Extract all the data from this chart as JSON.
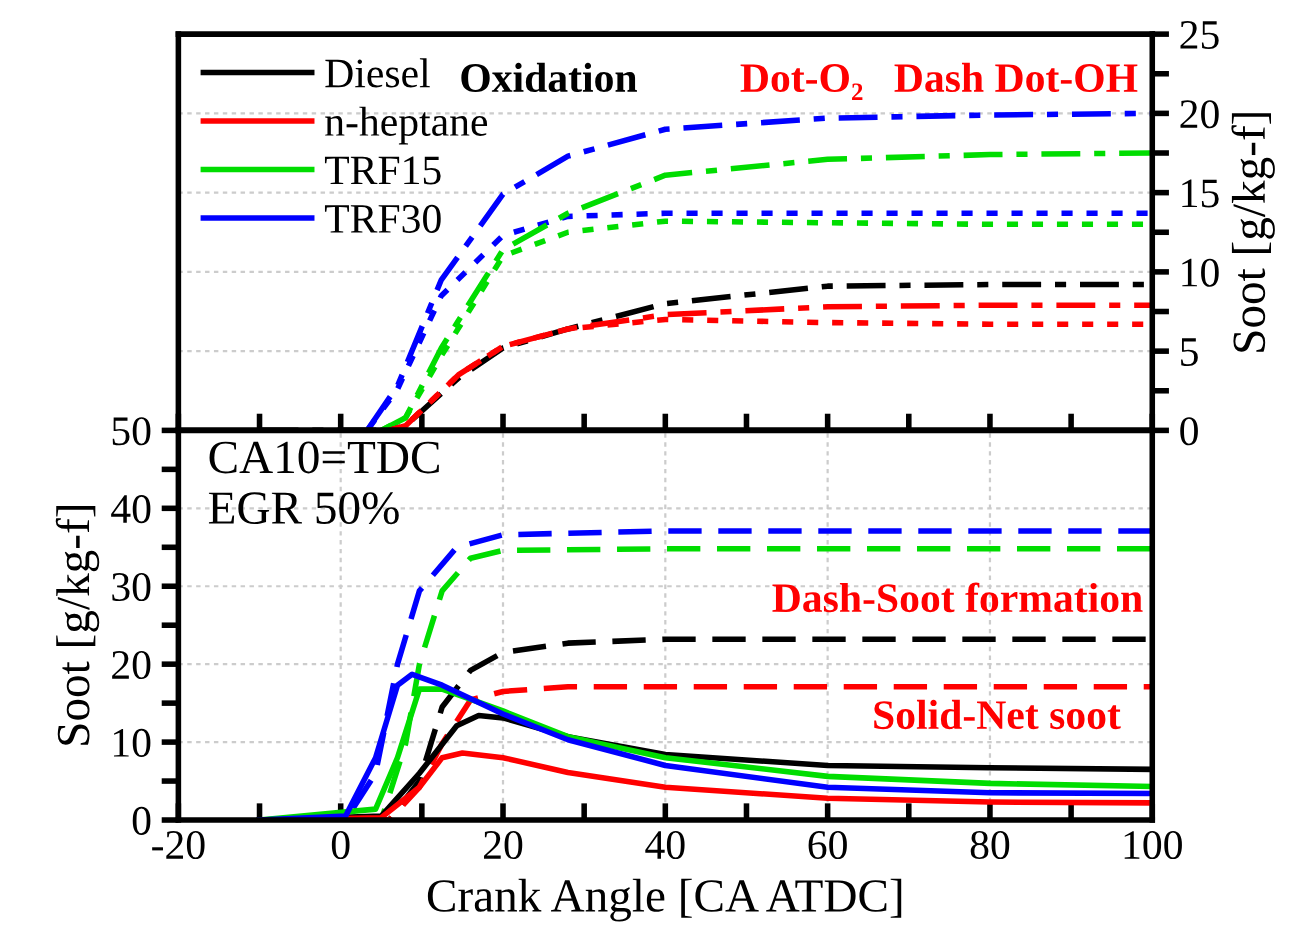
{
  "chart_data": [
    {
      "type": "line",
      "xlim": [
        -20,
        100
      ],
      "xticks": [
        {
          "value": -20,
          "label": null
        },
        {
          "value": -10,
          "label": null
        },
        {
          "value": 0,
          "label": null
        },
        {
          "value": 10,
          "label": null
        },
        {
          "value": 20,
          "label": null
        },
        {
          "value": 30,
          "label": null
        },
        {
          "value": 40,
          "label": null
        },
        {
          "value": 50,
          "label": null
        },
        {
          "value": 60,
          "label": null
        },
        {
          "value": 70,
          "label": null
        },
        {
          "value": 80,
          "label": null
        },
        {
          "value": 90,
          "label": null
        },
        {
          "value": 100,
          "label": null
        }
      ],
      "ylim": [
        0,
        25
      ],
      "yticks": [
        0,
        {
          "value": 2.5,
          "label": null
        },
        5,
        {
          "value": 7.5,
          "label": null
        },
        10,
        {
          "value": 12.5,
          "label": null
        },
        15,
        {
          "value": 17.5,
          "label": null
        },
        20,
        {
          "value": 22.5,
          "label": null
        },
        25
      ],
      "ylabel": "Soot [g/kg-f]",
      "tick_labels": "y",
      "grid": true,
      "annotations": [
        "Oxidation",
        "Dot-O₂",
        "Dash Dot-OH"
      ],
      "series": [
        {
          "color": "#0000ff",
          "line_style": "dashdot",
          "x": [
            3.4,
            7,
            12.4,
            20,
            28,
            40,
            60,
            80,
            100
          ],
          "values": [
            0.1,
            2.8,
            9.5,
            14.9,
            17.3,
            19,
            19.7,
            19.9,
            20
          ]
        },
        {
          "color": "#0000ff",
          "line_style": "dotted",
          "x": [
            3.4,
            7,
            12.4,
            20,
            28,
            40,
            60,
            80,
            100
          ],
          "values": [
            0.1,
            2.6,
            8.5,
            12.3,
            13.5,
            13.7,
            13.7,
            13.7,
            13.7
          ]
        },
        {
          "color": "#00dd00",
          "line_style": "dashdot",
          "x": [
            5,
            8,
            12.4,
            20,
            28,
            40,
            60,
            80,
            100
          ],
          "values": [
            0,
            0.8,
            5.2,
            11.4,
            13.7,
            16.1,
            17.1,
            17.4,
            17.5
          ]
        },
        {
          "color": "#00dd00",
          "line_style": "dotted",
          "x": [
            5,
            8,
            12.4,
            20,
            28,
            40,
            60,
            80,
            100
          ],
          "values": [
            0,
            0.8,
            4.7,
            11,
            12.5,
            13.2,
            13.1,
            13,
            13
          ]
        },
        {
          "color": "#000000",
          "line_style": "dashdot",
          "x": [
            -10,
            6,
            8,
            14.5,
            20,
            28,
            40,
            60,
            80,
            100
          ],
          "values": [
            0,
            0,
            0.3,
            3.3,
            5.2,
            6.4,
            8,
            9.1,
            9.2,
            9.2
          ]
        },
        {
          "color": "#ff0000",
          "line_style": "dashdot",
          "x": [
            6,
            8,
            14.5,
            20,
            28,
            40,
            60,
            80,
            100
          ],
          "values": [
            0,
            0.3,
            3.5,
            5.3,
            6.4,
            7.3,
            7.8,
            7.9,
            7.9
          ]
        },
        {
          "color": "#ff0000",
          "line_style": "dotted",
          "x": [
            6,
            8,
            14.5,
            20,
            28,
            40,
            60,
            80,
            100
          ],
          "values": [
            0,
            0.3,
            3.5,
            5.3,
            6.4,
            7,
            6.8,
            6.7,
            6.7
          ]
        }
      ]
    },
    {
      "type": "line",
      "xlim": [
        -20,
        100
      ],
      "xticks": [
        -20,
        {
          "value": -10,
          "label": null
        },
        0,
        {
          "value": 10,
          "label": null
        },
        20,
        {
          "value": 30,
          "label": null
        },
        40,
        {
          "value": 50,
          "label": null
        },
        60,
        {
          "value": 70,
          "label": null
        },
        80,
        {
          "value": 90,
          "label": null
        },
        100
      ],
      "ylim": [
        0,
        50
      ],
      "yticks": [
        0,
        {
          "value": 5,
          "label": null
        },
        10,
        {
          "value": 15,
          "label": null
        },
        20,
        {
          "value": 25,
          "label": null
        },
        30,
        {
          "value": 35,
          "label": null
        },
        40,
        {
          "value": 45,
          "label": null
        },
        50
      ],
      "xlabel": "Crank Angle [CA ATDC]",
      "ylabel": "Soot [g/kg-f]",
      "grid": true,
      "legend": "top left",
      "annotations": [
        "CA10=TDC",
        "EGR 50%",
        "Dash-Soot formation",
        "Solid-Net soot"
      ],
      "series": [
        {
          "color": "#0000ff",
          "line_style": "dashed",
          "x": [
            -10,
            0.6,
            4.3,
            7,
            9.7,
            14.3,
            20,
            40,
            100
          ],
          "values": [
            0,
            0,
            6,
            20,
            29.4,
            35,
            36.6,
            37.1,
            37.1
          ]
        },
        {
          "color": "#00dd00",
          "line_style": "dashed",
          "x": [
            -10,
            5,
            8,
            9.7,
            12.5,
            16,
            20,
            40,
            100
          ],
          "values": [
            0,
            0,
            9.8,
            20,
            29.4,
            33.6,
            34.6,
            34.8,
            34.8
          ]
        },
        {
          "color": "#000000",
          "line_style": "dashed",
          "x": [
            -10,
            6,
            9.7,
            12.5,
            16,
            20,
            28,
            40,
            100
          ],
          "values": [
            0,
            0,
            5,
            14.5,
            19.2,
            21.5,
            22.7,
            23.2,
            23.2
          ]
        },
        {
          "color": "#ff0000",
          "line_style": "dashed",
          "x": [
            -10,
            6,
            9.7,
            12.5,
            16,
            20,
            28,
            100
          ],
          "values": [
            0,
            0,
            4.2,
            9.8,
            15.4,
            16.5,
            17.1,
            17.1
          ]
        },
        {
          "name": "Diesel",
          "color": "#000000",
          "line_style": "solid",
          "x": [
            -10,
            5,
            9.7,
            14.3,
            17,
            20,
            28,
            40,
            60,
            80,
            100
          ],
          "values": [
            0,
            0.5,
            6,
            12.1,
            13.4,
            13.1,
            10.7,
            8.4,
            7,
            6.7,
            6.5
          ]
        },
        {
          "name": "n-heptane",
          "color": "#ff0000",
          "line_style": "solid",
          "x": [
            -10,
            5,
            9.7,
            12.5,
            15,
            20,
            28,
            40,
            60,
            80,
            100
          ],
          "values": [
            0,
            0.3,
            4.2,
            8,
            8.6,
            8,
            6.1,
            4.2,
            2.8,
            2.3,
            2.2
          ]
        },
        {
          "name": "TRF15",
          "color": "#00dd00",
          "line_style": "solid",
          "x": [
            -10,
            4.3,
            7,
            9.7,
            12.5,
            20,
            28,
            40,
            60,
            80,
            100
          ],
          "values": [
            0,
            1.4,
            8,
            16.8,
            16.8,
            14,
            10.7,
            8,
            5.6,
            4.7,
            4.3
          ]
        },
        {
          "name": "TRF30",
          "color": "#0000ff",
          "line_style": "solid",
          "x": [
            -10,
            0.6,
            4.3,
            7,
            8.8,
            12.5,
            20,
            28,
            40,
            60,
            80,
            100
          ],
          "values": [
            0,
            0.5,
            8,
            17.3,
            18.7,
            17.3,
            13.6,
            10.3,
            7,
            4.2,
            3.5,
            3.4
          ]
        }
      ]
    }
  ]
}
